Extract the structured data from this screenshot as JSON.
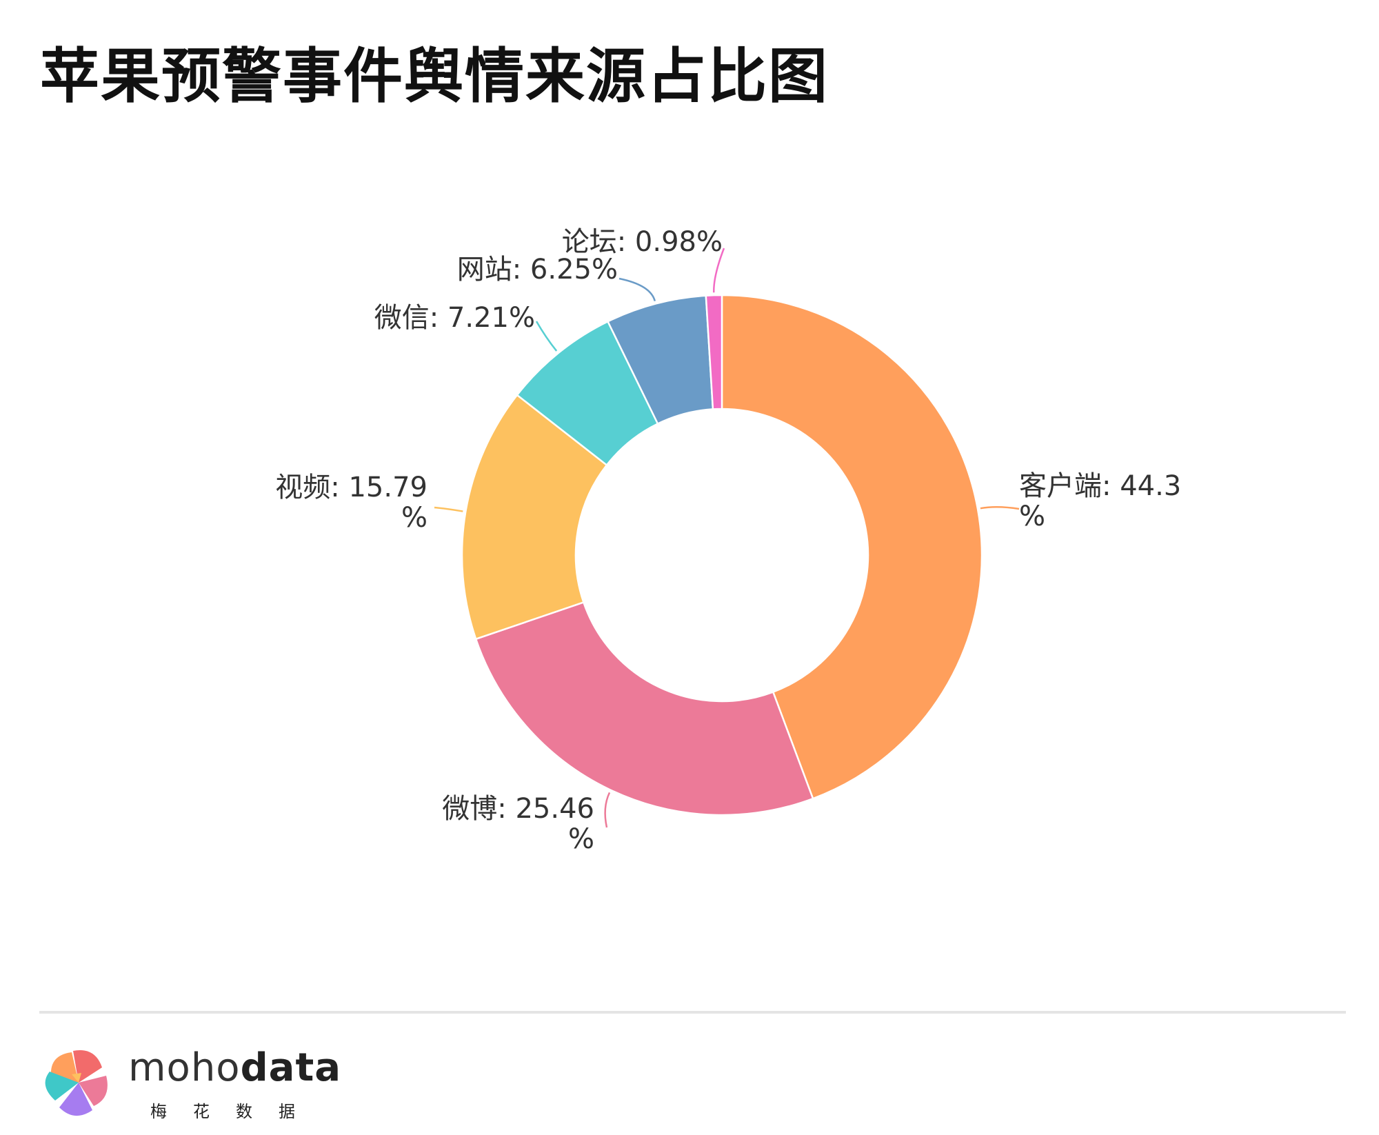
{
  "title": "苹果预警事件舆情来源占比图",
  "brand": {
    "word_light": "moho",
    "word_bold": "data",
    "subtitle": "梅花数据"
  },
  "chart_data": {
    "type": "pie",
    "variant": "donut",
    "title": "苹果预警事件舆情来源占比图",
    "series": [
      {
        "name": "客户端",
        "value": 44.3,
        "label_lines": [
          "客户端: 44.3",
          "%"
        ],
        "color": "#FF9F5C"
      },
      {
        "name": "微博",
        "value": 25.46,
        "label_lines": [
          "微博: 25.46",
          "%"
        ],
        "color": "#EC7A98"
      },
      {
        "name": "视频",
        "value": 15.79,
        "label_lines": [
          "视频: 15.79",
          "%"
        ],
        "color": "#FDC15F"
      },
      {
        "name": "微信",
        "value": 7.21,
        "label_lines": [
          "微信: 7.21%"
        ],
        "color": "#57CFD2"
      },
      {
        "name": "网站",
        "value": 6.25,
        "label_lines": [
          "网站: 6.25%"
        ],
        "color": "#6A9BC7"
      },
      {
        "name": "论坛",
        "value": 0.98,
        "label_lines": [
          "论坛: 0.98%"
        ],
        "color": "#F26BC4"
      }
    ],
    "legend": "none"
  }
}
